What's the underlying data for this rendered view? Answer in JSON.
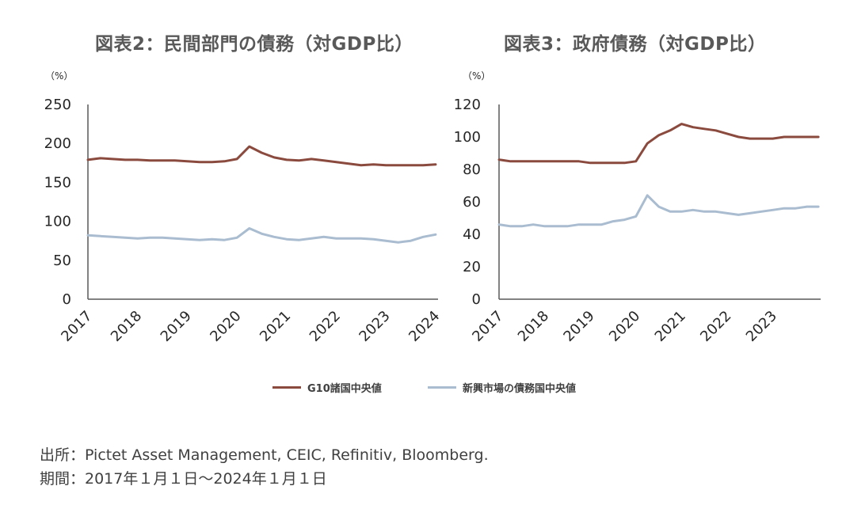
{
  "colors": {
    "g10": "#8B4A3E",
    "em": "#A9BCD0",
    "axis": "#595959"
  },
  "source_text": "出所：Pictet Asset Management, CEIC, Refinitiv, Bloomberg.",
  "period_text": "期間：2017年１月１日～2024年１月１日",
  "legend": [
    {
      "label": "G10諸国中央値",
      "color": "#8B4A3E"
    },
    {
      "label": "新興市場の債務国中央値",
      "color": "#A9BCD0"
    }
  ],
  "chart_data": [
    {
      "type": "line",
      "title": "図表2：民間部門の債務（対GDP比）",
      "unit": "（%）",
      "ylim": [
        0,
        250
      ],
      "yticks": [
        0,
        50,
        100,
        150,
        200,
        250
      ],
      "xlim": [
        2017,
        2024.05
      ],
      "xticks": [
        2017,
        2018,
        2019,
        2020,
        2021,
        2022,
        2023,
        2024
      ],
      "series": [
        {
          "name": "G10諸国中央値",
          "x": [
            2017,
            2017.25,
            2017.5,
            2017.75,
            2018,
            2018.25,
            2018.5,
            2018.75,
            2019,
            2019.25,
            2019.5,
            2019.75,
            2020,
            2020.25,
            2020.5,
            2020.75,
            2021,
            2021.25,
            2021.5,
            2021.75,
            2022,
            2022.25,
            2022.5,
            2022.75,
            2023,
            2023.25,
            2023.5,
            2023.75,
            2024
          ],
          "values": [
            179,
            181,
            180,
            179,
            179,
            178,
            178,
            178,
            177,
            176,
            176,
            177,
            180,
            196,
            188,
            182,
            179,
            178,
            180,
            178,
            176,
            174,
            172,
            173,
            172,
            172,
            172,
            172,
            173
          ]
        },
        {
          "name": "新興市場の債務国中央値",
          "x": [
            2017,
            2017.25,
            2017.5,
            2017.75,
            2018,
            2018.25,
            2018.5,
            2018.75,
            2019,
            2019.25,
            2019.5,
            2019.75,
            2020,
            2020.25,
            2020.5,
            2020.75,
            2021,
            2021.25,
            2021.5,
            2021.75,
            2022,
            2022.25,
            2022.5,
            2022.75,
            2023,
            2023.25,
            2023.5,
            2023.75,
            2024
          ],
          "values": [
            82,
            81,
            80,
            79,
            78,
            79,
            79,
            78,
            77,
            76,
            77,
            76,
            79,
            91,
            84,
            80,
            77,
            76,
            78,
            80,
            78,
            78,
            78,
            77,
            75,
            73,
            75,
            80,
            83
          ]
        }
      ]
    },
    {
      "type": "line",
      "title": "図表3：政府債務（対GDP比）",
      "unit": "（%）",
      "ylim": [
        0,
        120
      ],
      "yticks": [
        0,
        20,
        40,
        60,
        80,
        100,
        120
      ],
      "xlim": [
        2017,
        2024.05
      ],
      "xticks": [
        2017,
        2018,
        2019,
        2020,
        2021,
        2022,
        2023
      ],
      "series": [
        {
          "name": "G10諸国中央値",
          "x": [
            2017,
            2017.25,
            2017.5,
            2017.75,
            2018,
            2018.25,
            2018.5,
            2018.75,
            2019,
            2019.25,
            2019.5,
            2019.75,
            2020,
            2020.25,
            2020.5,
            2020.75,
            2021,
            2021.25,
            2021.5,
            2021.75,
            2022,
            2022.25,
            2022.5,
            2022.75,
            2023,
            2023.25,
            2023.5,
            2023.75,
            2024
          ],
          "values": [
            86,
            85,
            85,
            85,
            85,
            85,
            85,
            85,
            84,
            84,
            84,
            84,
            85,
            96,
            101,
            104,
            108,
            106,
            105,
            104,
            102,
            100,
            99,
            99,
            99,
            100,
            100,
            100,
            100
          ]
        },
        {
          "name": "新興市場の債務国中央値",
          "x": [
            2017,
            2017.25,
            2017.5,
            2017.75,
            2018,
            2018.25,
            2018.5,
            2018.75,
            2019,
            2019.25,
            2019.5,
            2019.75,
            2020,
            2020.25,
            2020.5,
            2020.75,
            2021,
            2021.25,
            2021.5,
            2021.75,
            2022,
            2022.25,
            2022.5,
            2022.75,
            2023,
            2023.25,
            2023.5,
            2023.75,
            2024
          ],
          "values": [
            46,
            45,
            45,
            46,
            45,
            45,
            45,
            46,
            46,
            46,
            48,
            49,
            51,
            64,
            57,
            54,
            54,
            55,
            54,
            54,
            53,
            52,
            53,
            54,
            55,
            56,
            56,
            57,
            57
          ]
        }
      ]
    }
  ]
}
